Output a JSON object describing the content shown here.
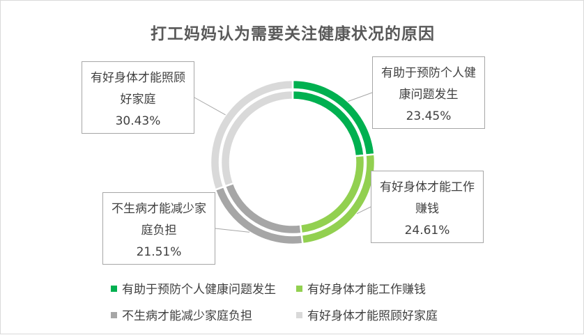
{
  "chart_data": {
    "type": "pie",
    "title": "打工妈妈认为需要关注健康状况的原因",
    "slices": [
      {
        "name": "有助于预防个人健康问题发生",
        "value": 23.45,
        "label": "23.45%",
        "color": "#00b050",
        "callout_lines": [
          "有助于预防个人健",
          "康问题发生"
        ]
      },
      {
        "name": "有好身体才能工作赚钱",
        "value": 24.61,
        "label": "24.61%",
        "color": "#92d050",
        "callout_lines": [
          "有好身体才能工作",
          "赚钱"
        ]
      },
      {
        "name": "不生病才能减少家庭负担",
        "value": 21.51,
        "label": "21.51%",
        "color": "#a6a6a6",
        "callout_lines": [
          "不生病才能减少家",
          "庭负担"
        ]
      },
      {
        "name": "有好身体才能照顾好家庭",
        "value": 30.43,
        "label": "30.43%",
        "color": "#d9d9d9",
        "callout_lines": [
          "有好身体才能照顾",
          "好家庭"
        ]
      }
    ],
    "legend_position": "bottom"
  }
}
